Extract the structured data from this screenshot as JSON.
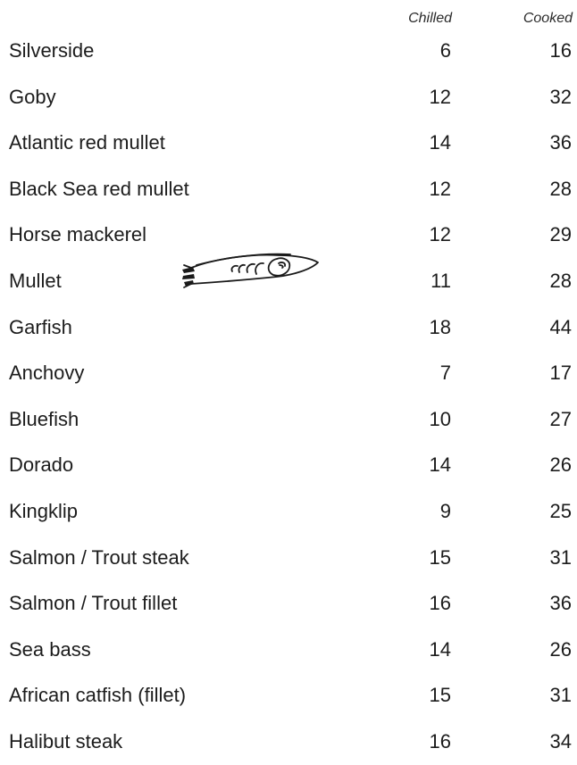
{
  "header": {
    "chilled_label": "Chilled",
    "cooked_label": "Cooked"
  },
  "rows": [
    {
      "name": "Silverside",
      "chilled": "6",
      "cooked": "16"
    },
    {
      "name": "Goby",
      "chilled": "12",
      "cooked": "32"
    },
    {
      "name": "Atlantic red mullet",
      "chilled": "14",
      "cooked": "36"
    },
    {
      "name": "Black Sea red mullet",
      "chilled": "12",
      "cooked": "28"
    },
    {
      "name": "Horse mackerel",
      "chilled": "12",
      "cooked": "29"
    },
    {
      "name": "Mullet",
      "chilled": "11",
      "cooked": "28"
    },
    {
      "name": "Garfish",
      "chilled": "18",
      "cooked": "44"
    },
    {
      "name": "Anchovy",
      "chilled": "7",
      "cooked": "17"
    },
    {
      "name": "Bluefish",
      "chilled": "10",
      "cooked": "27"
    },
    {
      "name": "Dorado",
      "chilled": "14",
      "cooked": "26"
    },
    {
      "name": "Kingklip",
      "chilled": "9",
      "cooked": "25"
    },
    {
      "name": "Salmon / Trout steak",
      "chilled": "15",
      "cooked": "31"
    },
    {
      "name": "Salmon / Trout fillet",
      "chilled": "16",
      "cooked": "36"
    },
    {
      "name": "Sea bass",
      "chilled": "14",
      "cooked": "26"
    },
    {
      "name": "African catfish (fillet)",
      "chilled": "15",
      "cooked": "31"
    },
    {
      "name": "Halibut steak",
      "chilled": "16",
      "cooked": "34"
    }
  ],
  "decoration": {
    "icon": "fish-sketch-icon",
    "ink_color": "#1a1a1a"
  }
}
